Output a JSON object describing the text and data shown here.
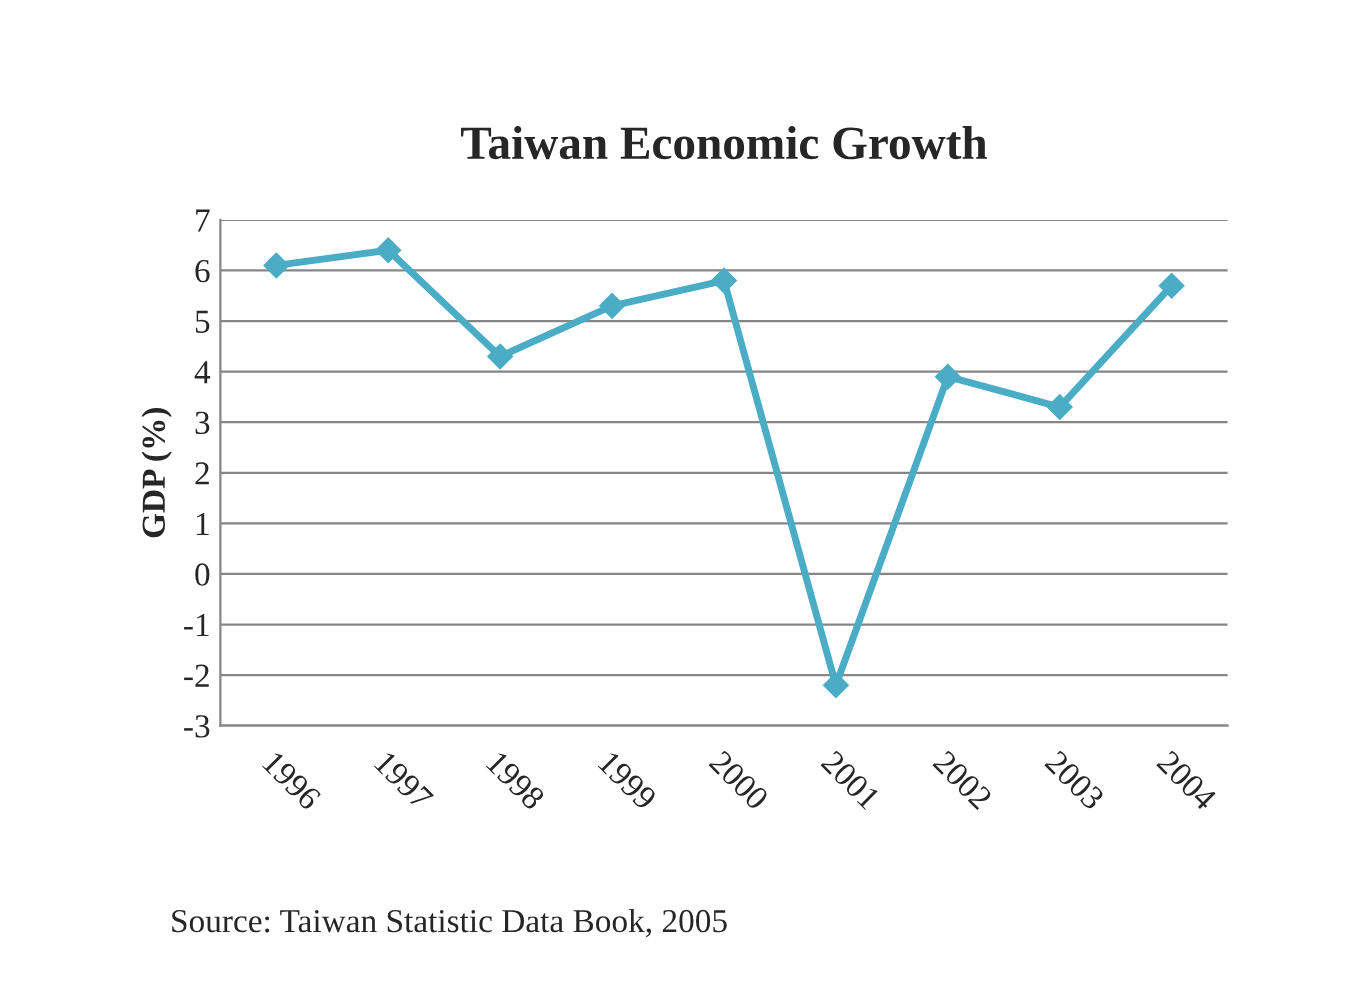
{
  "chart_data": {
    "type": "line",
    "title": "Taiwan Economic Growth",
    "ylabel": "GDP (%)",
    "categories": [
      "1996",
      "1997",
      "1998",
      "1999",
      "2000",
      "2001",
      "2002",
      "2003",
      "2004"
    ],
    "series": [
      {
        "color": "#4bacc6",
        "values": [
          6.1,
          6.4,
          4.3,
          5.3,
          5.8,
          -2.2,
          3.9,
          3.3,
          5.7
        ]
      }
    ],
    "ylim": [
      -3,
      7
    ],
    "yticks": [
      -3,
      -2,
      -1,
      0,
      1,
      2,
      3,
      4,
      5,
      6,
      7
    ],
    "grid": "y",
    "marker": "diamond",
    "line_style": "solid",
    "legend": false,
    "annotations": [
      "Source: Taiwan Statistic Data Book, 2005"
    ]
  }
}
